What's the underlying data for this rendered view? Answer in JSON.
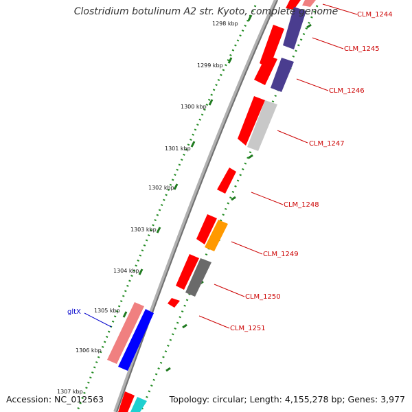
{
  "title": "Clostridium botulinum A2 str. Kyoto, complete genome",
  "footer": {
    "accession": "Accession: NC_012563",
    "summary": "Topology: circular; Length: 4,155,278 bp; Genes: 3,977"
  },
  "kbp_labels": [
    "1298 kbp",
    "1299 kbp",
    "1300 kbp",
    "1301 kbp",
    "1302 kbp",
    "1303 kbp",
    "1304 kbp",
    "1305 kbp",
    "1306 kbp",
    "1307 kbp"
  ],
  "gene_labels": [
    "CLM_1244",
    "CLM_1245",
    "CLM_1246",
    "CLM_1247",
    "CLM_1248",
    "CLM_1249",
    "CLM_1250",
    "CLM_1251"
  ],
  "named_gene": "gltX",
  "colors": {
    "red": "#ff0000",
    "purple": "#4a3d8f",
    "gray": "#c8c8c8",
    "orange": "#ff9900",
    "darkgray": "#6a6a6a",
    "blue": "#0000ff",
    "pink": "#f08080",
    "cyan": "#20d0d0",
    "backbone": "#808080",
    "tick_green": "#228b22",
    "label_red": "#cc0000",
    "label_blue": "#0000cc"
  }
}
